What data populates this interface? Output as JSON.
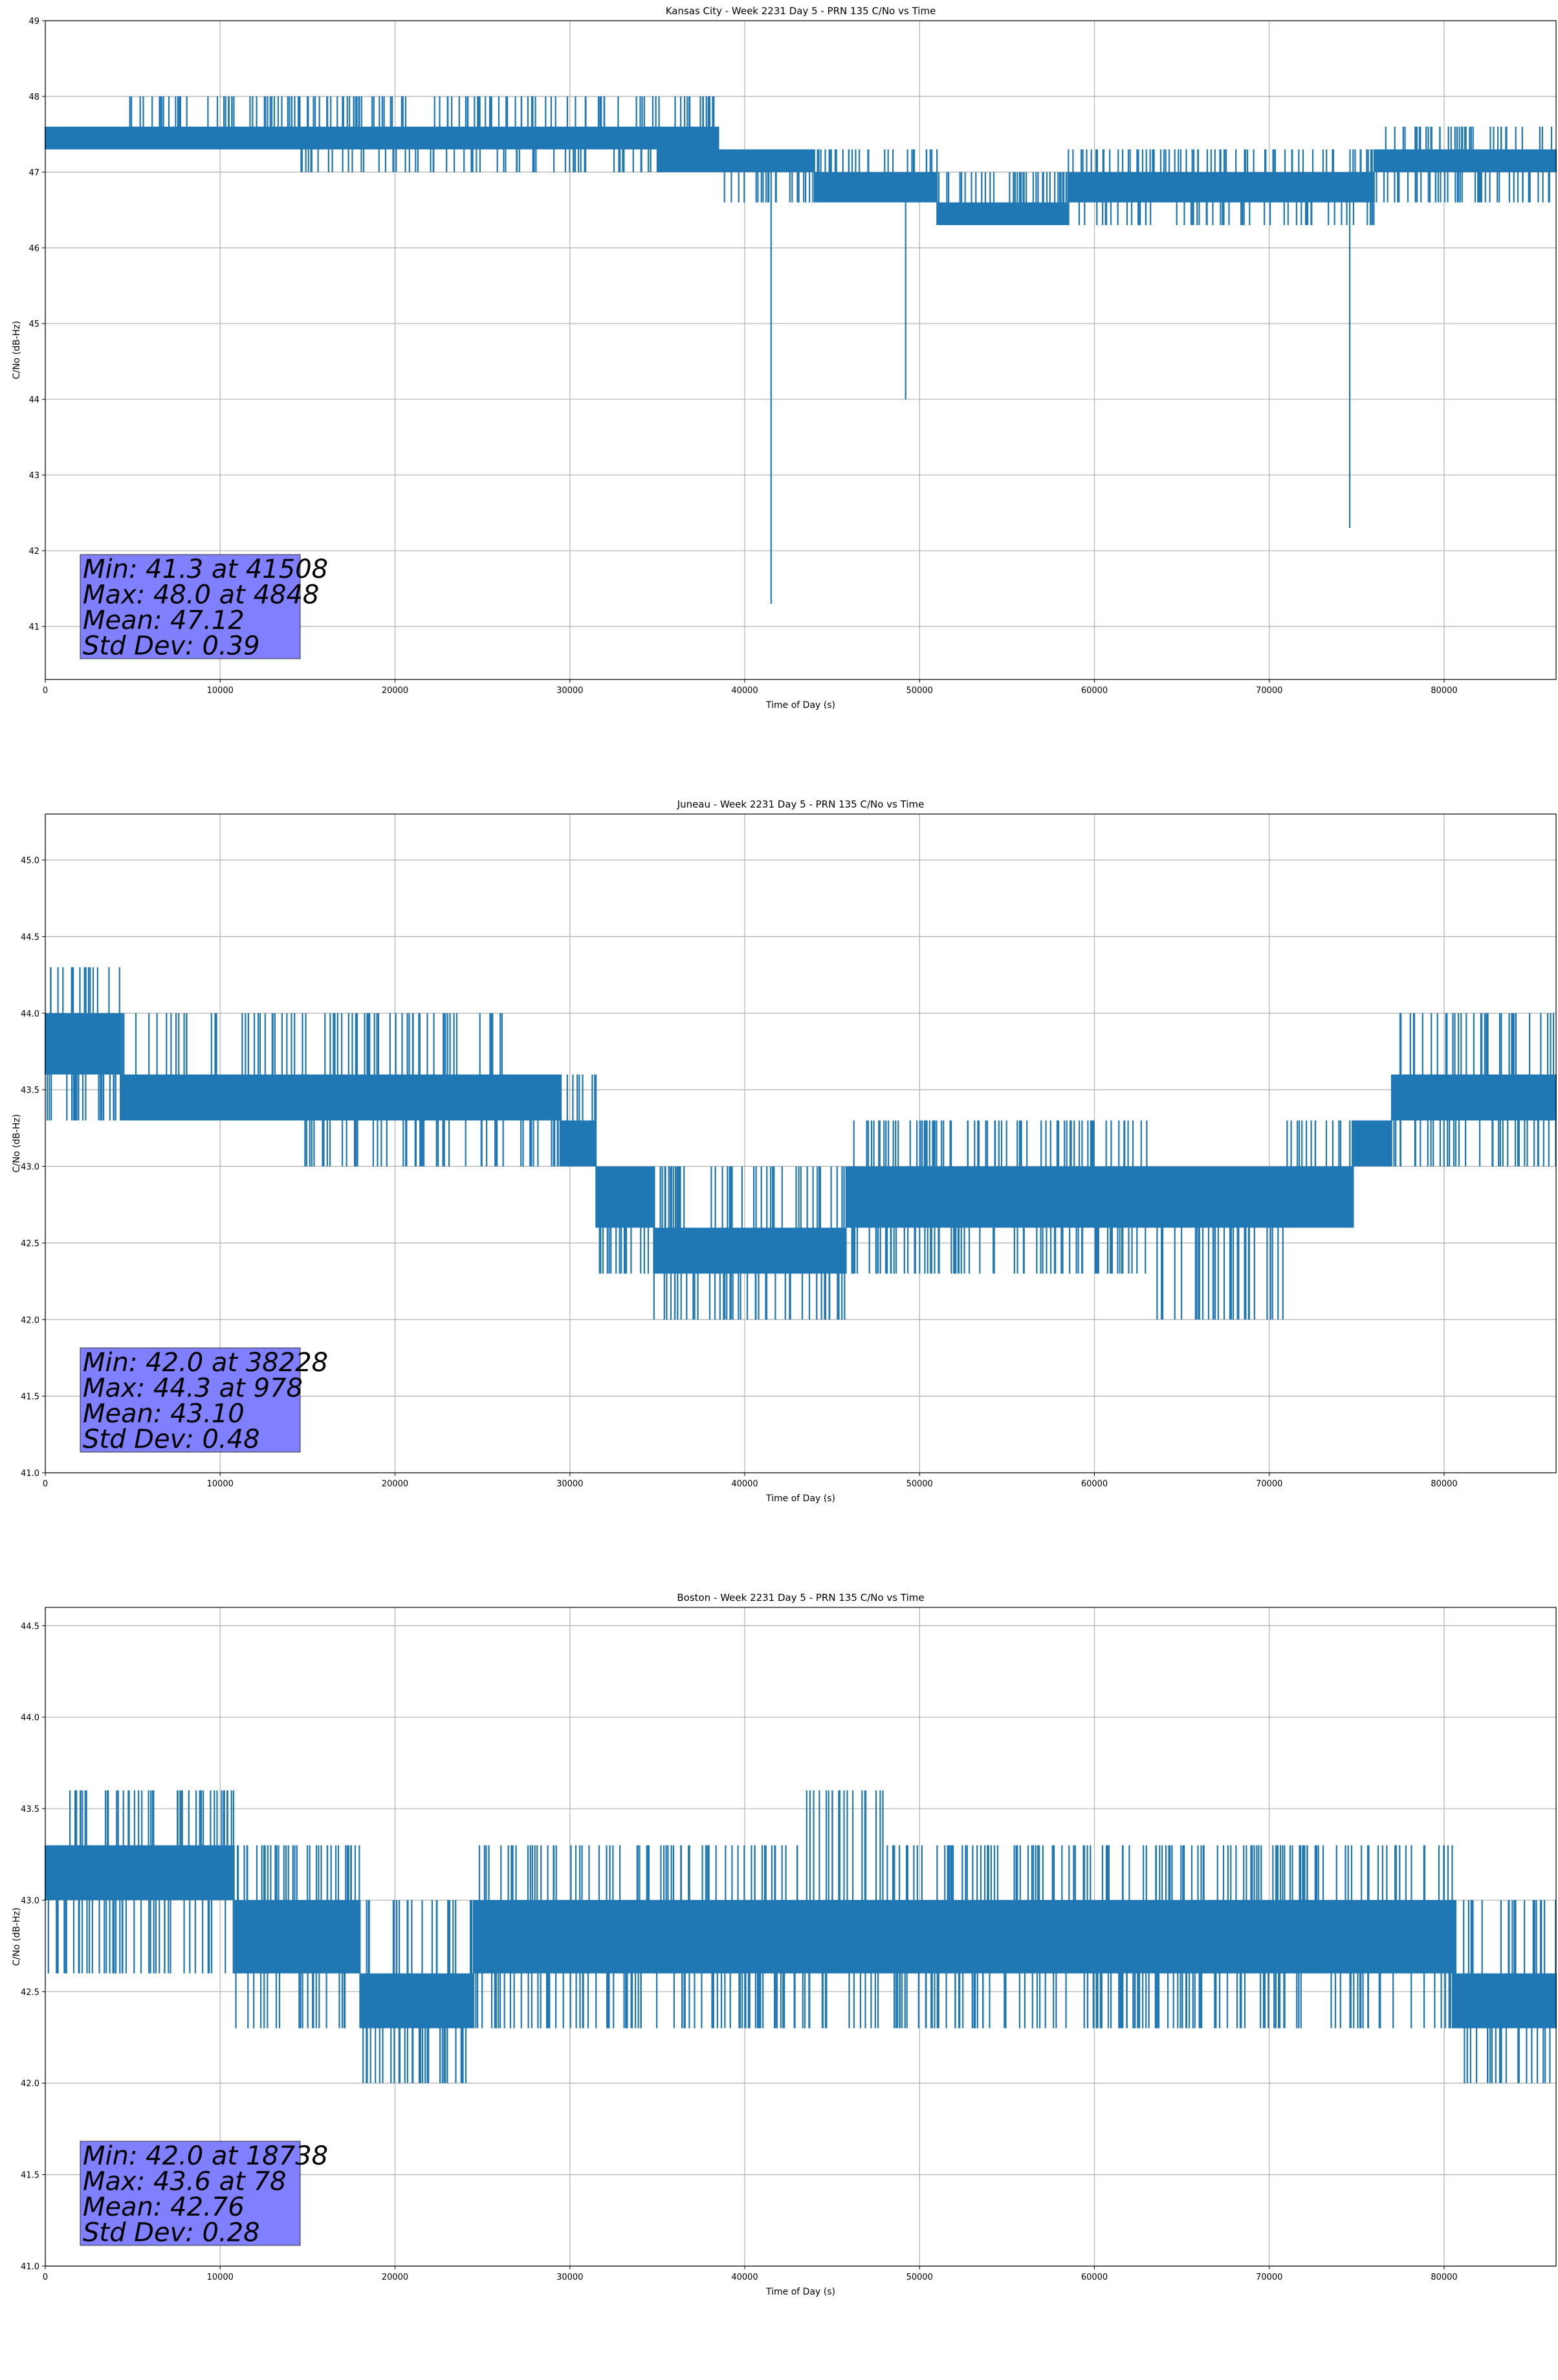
{
  "chart_data": [
    {
      "type": "line",
      "title": "Kansas City - Week 2231 Day 5 - PRN 135 C/No vs Time",
      "xlabel": "Time of Day (s)",
      "ylabel": "C/No (dB-Hz)",
      "xlim": [
        0,
        86400
      ],
      "ylim": [
        40.3,
        49
      ],
      "xticks": [
        0,
        10000,
        20000,
        30000,
        40000,
        50000,
        60000,
        70000,
        80000
      ],
      "yticks": [
        41,
        42,
        43,
        44,
        45,
        46,
        47,
        48,
        49
      ],
      "ytick_decimals": 0,
      "grid": true,
      "line_color": "#1f77b4",
      "box_color": "#8080ff",
      "stats": [
        "Min: 41.3 at 41508",
        "Max: 48.0 at 4848",
        "Mean: 47.12",
        "Std Dev: 0.39"
      ],
      "bands": [
        {
          "x": [
            0,
            4000
          ],
          "range": [
            47.3,
            47.6
          ]
        },
        {
          "x": [
            4000,
            14500
          ],
          "range": [
            47.3,
            47.6
          ],
          "top_spikes": 48.0,
          "bottom_spikes": 47.3
        },
        {
          "x": [
            14500,
            35000
          ],
          "range": [
            47.3,
            47.6
          ],
          "top_spikes": 48.0,
          "bottom_spikes": 47.0
        },
        {
          "x": [
            35000,
            38500
          ],
          "range": [
            47.0,
            47.6
          ],
          "top_spikes": 48.0,
          "bottom_spikes": 47.0
        },
        {
          "x": [
            38500,
            44000
          ],
          "range": [
            47.0,
            47.3
          ],
          "top_spikes": 47.3,
          "bottom_spikes": 46.6
        },
        {
          "x": [
            44000,
            51000
          ],
          "range": [
            46.6,
            47.0
          ],
          "top_spikes": 47.3,
          "bottom_spikes": 46.6
        },
        {
          "x": [
            51000,
            58500
          ],
          "range": [
            46.3,
            46.6
          ],
          "top_spikes": 47.0,
          "bottom_spikes": 46.3
        },
        {
          "x": [
            58500,
            76000
          ],
          "range": [
            46.6,
            47.0
          ],
          "top_spikes": 47.3,
          "bottom_spikes": 46.3
        },
        {
          "x": [
            76000,
            86400
          ],
          "range": [
            47.0,
            47.3
          ],
          "top_spikes": 47.6,
          "bottom_spikes": 46.6
        }
      ],
      "drops": [
        {
          "x": 41508,
          "y": 41.3
        },
        {
          "x": 49200,
          "y": 44.0
        },
        {
          "x": 74600,
          "y": 42.3
        }
      ]
    },
    {
      "type": "line",
      "title": "Juneau - Week 2231 Day 5 - PRN 135 C/No vs Time",
      "xlabel": "Time of Day (s)",
      "ylabel": "C/No (dB-Hz)",
      "xlim": [
        0,
        86400
      ],
      "ylim": [
        41.0,
        45.3
      ],
      "xticks": [
        0,
        10000,
        20000,
        30000,
        40000,
        50000,
        60000,
        70000,
        80000
      ],
      "yticks": [
        41.0,
        41.5,
        42.0,
        42.5,
        43.0,
        43.5,
        44.0,
        44.5,
        45.0
      ],
      "ytick_decimals": 1,
      "grid": true,
      "line_color": "#1f77b4",
      "box_color": "#8080ff",
      "stats": [
        "Min: 42.0 at 38228",
        "Max: 44.3 at 978",
        "Mean: 43.10",
        "Std Dev: 0.48"
      ],
      "bands": [
        {
          "x": [
            0,
            4300
          ],
          "range": [
            43.6,
            44.0
          ],
          "top_spikes": 44.3,
          "bottom_spikes": 43.3
        },
        {
          "x": [
            4300,
            14600
          ],
          "range": [
            43.3,
            43.6
          ],
          "top_spikes": 44.0,
          "bottom_spikes": 43.3
        },
        {
          "x": [
            14600,
            22500
          ],
          "range": [
            43.3,
            43.6
          ],
          "top_spikes": 44.0,
          "bottom_spikes": 43.0
        },
        {
          "x": [
            22500,
            26500
          ],
          "range": [
            43.3,
            43.6
          ],
          "top_spikes": 44.0,
          "bottom_spikes": 43.0
        },
        {
          "x": [
            26500,
            29500
          ],
          "range": [
            43.3,
            43.6
          ],
          "top_spikes": 43.6,
          "bottom_spikes": 43.0
        },
        {
          "x": [
            29500,
            31500
          ],
          "range": [
            43.0,
            43.3
          ],
          "top_spikes": 43.6,
          "bottom_spikes": 43.0
        },
        {
          "x": [
            31500,
            34800
          ],
          "range": [
            42.6,
            43.0
          ],
          "top_spikes": 43.0,
          "bottom_spikes": 42.3
        },
        {
          "x": [
            34800,
            45800
          ],
          "range": [
            42.3,
            42.6
          ],
          "top_spikes": 43.0,
          "bottom_spikes": 42.0
        },
        {
          "x": [
            45800,
            63000
          ],
          "range": [
            42.6,
            43.0
          ],
          "top_spikes": 43.3,
          "bottom_spikes": 42.3
        },
        {
          "x": [
            63000,
            71000
          ],
          "range": [
            42.6,
            43.0
          ],
          "top_spikes": 43.0,
          "bottom_spikes": 42.0
        },
        {
          "x": [
            71000,
            74800
          ],
          "range": [
            42.6,
            43.0
          ],
          "top_spikes": 43.3,
          "bottom_spikes": 42.6
        },
        {
          "x": [
            74800,
            77000
          ],
          "range": [
            43.0,
            43.3
          ],
          "top_spikes": 43.3,
          "bottom_spikes": 43.0
        },
        {
          "x": [
            77000,
            86400
          ],
          "range": [
            43.3,
            43.6
          ],
          "top_spikes": 44.0,
          "bottom_spikes": 43.0
        }
      ],
      "drops": []
    },
    {
      "type": "line",
      "title": "Boston - Week 2231 Day 5 - PRN 135 C/No vs Time",
      "xlabel": "Time of Day (s)",
      "ylabel": "C/No (dB-Hz)",
      "xlim": [
        0,
        86400
      ],
      "ylim": [
        41.0,
        44.6
      ],
      "xticks": [
        0,
        10000,
        20000,
        30000,
        40000,
        50000,
        60000,
        70000,
        80000
      ],
      "yticks": [
        41.0,
        41.5,
        42.0,
        42.5,
        43.0,
        43.5,
        44.0,
        44.5
      ],
      "ytick_decimals": 1,
      "grid": true,
      "line_color": "#1f77b4",
      "box_color": "#8080ff",
      "stats": [
        "Min: 42.0 at 18738",
        "Max: 43.6 at 78",
        "Mean: 42.76",
        "Std Dev: 0.28"
      ],
      "bands": [
        {
          "x": [
            0,
            10800
          ],
          "range": [
            43.0,
            43.3
          ],
          "top_spikes": 43.6,
          "bottom_spikes": 42.6
        },
        {
          "x": [
            10800,
            18000
          ],
          "range": [
            42.6,
            43.0
          ],
          "top_spikes": 43.3,
          "bottom_spikes": 42.3
        },
        {
          "x": [
            18000,
            24500
          ],
          "range": [
            42.3,
            42.6
          ],
          "top_spikes": 43.0,
          "bottom_spikes": 42.0
        },
        {
          "x": [
            24500,
            43500
          ],
          "range": [
            42.6,
            43.0
          ],
          "top_spikes": 43.3,
          "bottom_spikes": 42.3
        },
        {
          "x": [
            43500,
            48000
          ],
          "range": [
            42.6,
            43.0
          ],
          "top_spikes": 43.6,
          "bottom_spikes": 42.3
        },
        {
          "x": [
            48000,
            80500
          ],
          "range": [
            42.6,
            43.0
          ],
          "top_spikes": 43.3,
          "bottom_spikes": 42.3
        },
        {
          "x": [
            80500,
            86400
          ],
          "range": [
            42.3,
            42.6
          ],
          "top_spikes": 43.0,
          "bottom_spikes": 42.0
        }
      ],
      "drops": []
    }
  ]
}
